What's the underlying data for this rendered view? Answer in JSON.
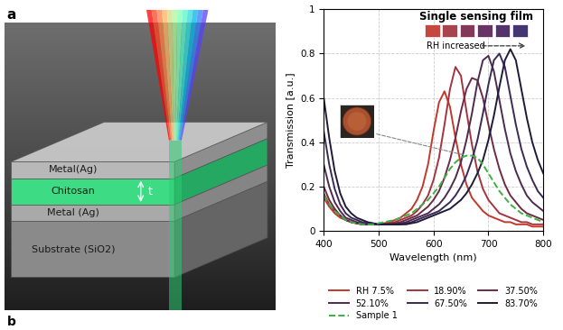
{
  "panel_label": "a",
  "next_panel_label": "b",
  "diagram": {
    "layers": [
      "Metal(Ag)",
      "Chitosan",
      "Metal (Ag)",
      "Substrate (SiO2)"
    ],
    "thickness_label": "t"
  },
  "chart_data": {
    "type": "line",
    "title": "Single sensing film",
    "swatches": {
      "colors": [
        "#c5473f",
        "#a8434f",
        "#84385a",
        "#683466",
        "#54336c",
        "#433673"
      ]
    },
    "annotations": [
      {
        "text": "RH increased"
      }
    ],
    "x_label": "Wavelength (nm)",
    "y_label": "Transmission [a.u.]",
    "x": [
      400,
      410,
      420,
      430,
      440,
      450,
      460,
      470,
      480,
      490,
      500,
      510,
      520,
      530,
      540,
      550,
      560,
      570,
      580,
      590,
      600,
      610,
      620,
      630,
      640,
      650,
      660,
      670,
      680,
      690,
      700,
      710,
      720,
      730,
      740,
      750,
      760,
      770,
      780,
      790,
      800
    ],
    "xlim": [
      400,
      800
    ],
    "xticks": [
      400,
      500,
      600,
      700,
      800
    ],
    "ylim": [
      0,
      1
    ],
    "yticks": [
      0,
      0.2,
      0.4,
      0.6,
      0.8,
      1
    ],
    "grid": true,
    "legend": "lower center",
    "series": [
      {
        "name": "RH 7.5%",
        "color": "#c0392b",
        "line_style": "solid",
        "values": [
          0.15,
          0.11,
          0.08,
          0.06,
          0.05,
          0.04,
          0.035,
          0.03,
          0.03,
          0.03,
          0.03,
          0.035,
          0.04,
          0.05,
          0.06,
          0.08,
          0.1,
          0.14,
          0.2,
          0.3,
          0.45,
          0.58,
          0.63,
          0.56,
          0.42,
          0.3,
          0.21,
          0.15,
          0.12,
          0.09,
          0.07,
          0.06,
          0.05,
          0.04,
          0.04,
          0.03,
          0.03,
          0.03,
          0.02,
          0.02,
          0.02
        ]
      },
      {
        "name": "18.90%",
        "color": "#a3343f",
        "line_style": "solid",
        "values": [
          0.17,
          0.12,
          0.09,
          0.07,
          0.05,
          0.04,
          0.035,
          0.03,
          0.03,
          0.03,
          0.03,
          0.03,
          0.035,
          0.04,
          0.05,
          0.06,
          0.07,
          0.09,
          0.12,
          0.16,
          0.23,
          0.33,
          0.48,
          0.64,
          0.74,
          0.7,
          0.54,
          0.39,
          0.27,
          0.19,
          0.14,
          0.11,
          0.08,
          0.07,
          0.06,
          0.05,
          0.04,
          0.04,
          0.03,
          0.03,
          0.03
        ]
      },
      {
        "name": "37.50%",
        "color": "#6e2a45",
        "line_style": "solid",
        "values": [
          0.2,
          0.14,
          0.1,
          0.07,
          0.05,
          0.04,
          0.035,
          0.03,
          0.03,
          0.03,
          0.03,
          0.03,
          0.03,
          0.035,
          0.04,
          0.05,
          0.06,
          0.07,
          0.09,
          0.11,
          0.14,
          0.18,
          0.24,
          0.32,
          0.42,
          0.54,
          0.64,
          0.69,
          0.68,
          0.6,
          0.48,
          0.37,
          0.28,
          0.21,
          0.16,
          0.13,
          0.1,
          0.08,
          0.07,
          0.06,
          0.05
        ]
      },
      {
        "name": "52.10%",
        "color": "#4e2a50",
        "line_style": "solid",
        "values": [
          0.3,
          0.2,
          0.13,
          0.09,
          0.06,
          0.05,
          0.04,
          0.035,
          0.03,
          0.03,
          0.03,
          0.03,
          0.03,
          0.03,
          0.035,
          0.04,
          0.05,
          0.06,
          0.07,
          0.08,
          0.1,
          0.12,
          0.15,
          0.19,
          0.24,
          0.31,
          0.41,
          0.53,
          0.67,
          0.77,
          0.79,
          0.72,
          0.59,
          0.46,
          0.35,
          0.27,
          0.21,
          0.16,
          0.13,
          0.11,
          0.09
        ]
      },
      {
        "name": "67.50%",
        "color": "#3a2a55",
        "line_style": "solid",
        "values": [
          0.45,
          0.3,
          0.19,
          0.12,
          0.08,
          0.06,
          0.05,
          0.04,
          0.035,
          0.03,
          0.03,
          0.03,
          0.03,
          0.03,
          0.03,
          0.035,
          0.04,
          0.05,
          0.06,
          0.07,
          0.08,
          0.09,
          0.11,
          0.13,
          0.16,
          0.2,
          0.25,
          0.32,
          0.41,
          0.53,
          0.66,
          0.77,
          0.8,
          0.74,
          0.61,
          0.48,
          0.37,
          0.29,
          0.23,
          0.18,
          0.15
        ]
      },
      {
        "name": "83.70%",
        "color": "#1e1b3a",
        "line_style": "solid",
        "values": [
          0.6,
          0.42,
          0.27,
          0.17,
          0.11,
          0.08,
          0.06,
          0.05,
          0.04,
          0.035,
          0.03,
          0.03,
          0.03,
          0.03,
          0.03,
          0.03,
          0.035,
          0.04,
          0.05,
          0.06,
          0.07,
          0.08,
          0.09,
          0.1,
          0.12,
          0.14,
          0.17,
          0.21,
          0.26,
          0.32,
          0.41,
          0.52,
          0.65,
          0.77,
          0.82,
          0.77,
          0.64,
          0.51,
          0.4,
          0.32,
          0.26
        ]
      },
      {
        "name": "Sample 1",
        "color": "#3cb043",
        "line_style": "dashed",
        "values": [
          0.16,
          0.12,
          0.09,
          0.07,
          0.05,
          0.04,
          0.035,
          0.03,
          0.03,
          0.03,
          0.035,
          0.04,
          0.045,
          0.05,
          0.06,
          0.07,
          0.08,
          0.1,
          0.12,
          0.14,
          0.17,
          0.2,
          0.24,
          0.28,
          0.31,
          0.33,
          0.34,
          0.34,
          0.33,
          0.3,
          0.26,
          0.22,
          0.18,
          0.15,
          0.12,
          0.1,
          0.08,
          0.07,
          0.06,
          0.05,
          0.04
        ]
      }
    ]
  }
}
